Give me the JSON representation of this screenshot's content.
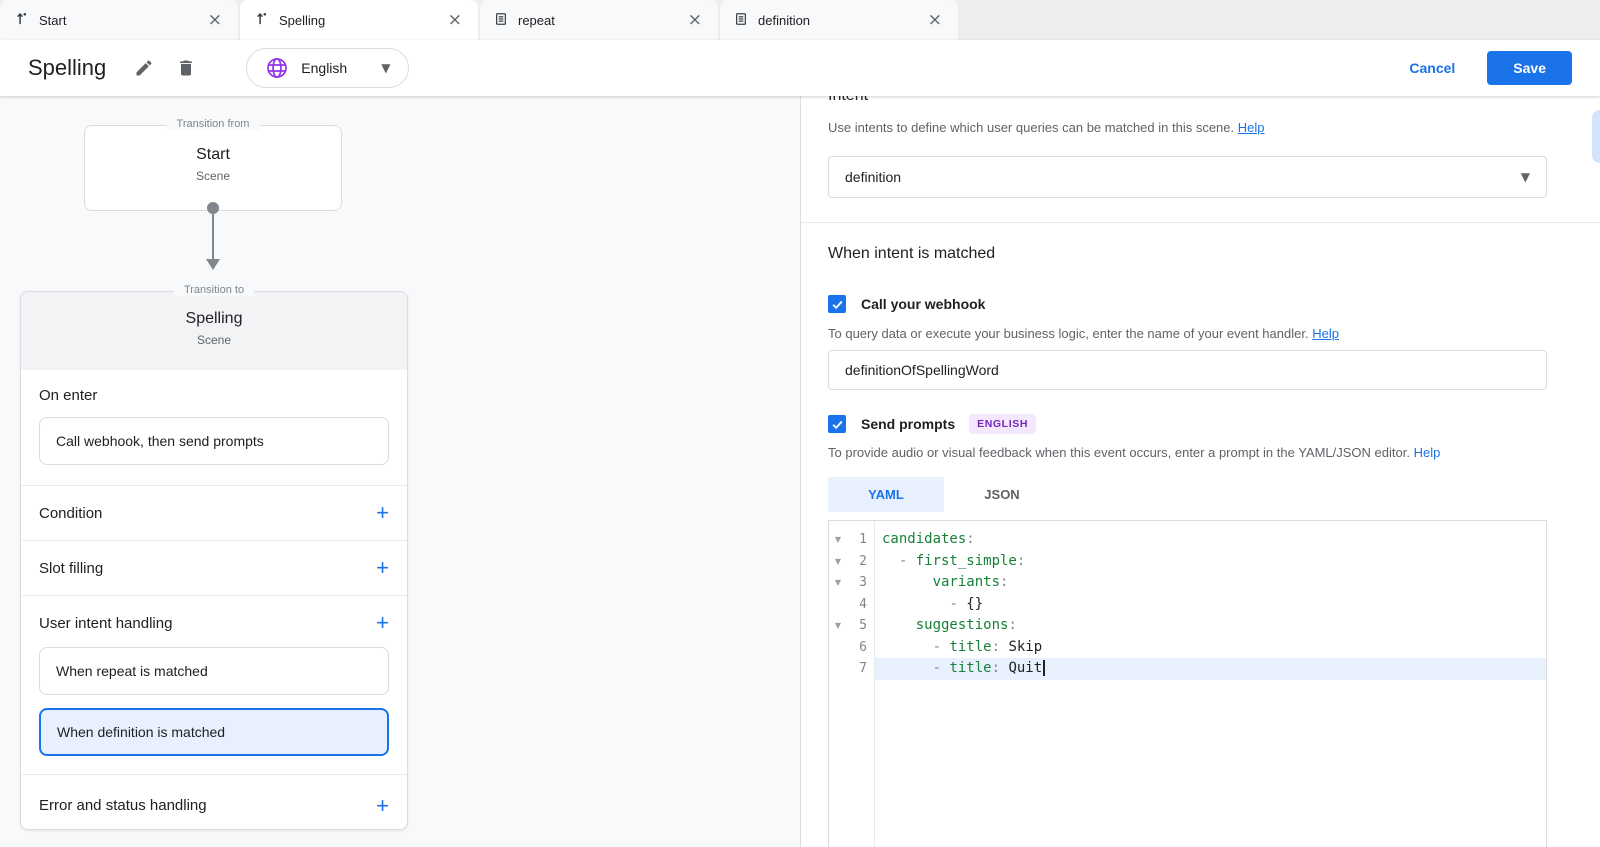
{
  "colors": {
    "accent_blue": "#1a73e8",
    "selected_bg": "#e8f0fe",
    "yaml_key_green": "#188038",
    "code_value_black": "#202124",
    "badge_purple_text": "#7627bb",
    "badge_purple_bg": "#f3e8fd",
    "globe_purple": "#9334e6",
    "border_gray": "#dadce0",
    "canvas_gray": "#f8f9fa",
    "card_head_gray": "#f1f3f4"
  },
  "tabs": [
    {
      "label": "Start",
      "icon": "scene-icon",
      "active": false
    },
    {
      "label": "Spelling",
      "icon": "scene-icon",
      "active": true
    },
    {
      "label": "repeat",
      "icon": "intent-icon",
      "active": false
    },
    {
      "label": "definition",
      "icon": "intent-icon",
      "active": false
    }
  ],
  "header": {
    "title": "Spelling",
    "language": "English",
    "cancel_label": "Cancel",
    "save_label": "Save"
  },
  "diagram": {
    "from": {
      "frame_label": "Transition from",
      "name": "Start",
      "type": "Scene"
    },
    "to": {
      "frame_label": "Transition to",
      "name": "Spelling",
      "type": "Scene"
    },
    "on_enter": {
      "label": "On enter",
      "handler": "Call webhook, then send prompts"
    },
    "rows": [
      {
        "label": "Condition"
      },
      {
        "label": "Slot filling"
      }
    ],
    "user_intent": {
      "label": "User intent handling",
      "handlers": [
        {
          "label": "When repeat is matched",
          "selected": false
        },
        {
          "label": "When definition is matched",
          "selected": true
        }
      ]
    },
    "error_row": {
      "label": "Error and status handling"
    }
  },
  "panel": {
    "intent": {
      "heading": "Intent",
      "description": "Use intents to define which user queries can be matched in this scene.",
      "help_label": "Help",
      "selected_value": "definition"
    },
    "matched_heading": "When intent is matched",
    "webhook": {
      "label": "Call your webhook",
      "checked": true,
      "description": "To query data or execute your business logic, enter the name of your event handler.",
      "help_label": "Help",
      "handler_value": "definitionOfSpellingWord"
    },
    "prompts": {
      "label": "Send prompts",
      "checked": true,
      "badge": "ENGLISH",
      "description": "To provide audio or visual feedback when this event occurs, enter a prompt in the YAML/JSON editor.",
      "help_label": "Help"
    },
    "editor": {
      "tabs": [
        {
          "label": "YAML",
          "active": true
        },
        {
          "label": "JSON",
          "active": false
        }
      ],
      "active_line": 7,
      "lines": [
        {
          "num": 1,
          "fold": true,
          "cursor": false,
          "segments": [
            [
              "key",
              "candidates"
            ],
            [
              "punc",
              ":"
            ]
          ]
        },
        {
          "num": 2,
          "fold": true,
          "cursor": false,
          "segments": [
            [
              "punc",
              "  - "
            ],
            [
              "key",
              "first_simple"
            ],
            [
              "punc",
              ":"
            ]
          ]
        },
        {
          "num": 3,
          "fold": true,
          "cursor": false,
          "segments": [
            [
              "punc",
              "      "
            ],
            [
              "key",
              "variants"
            ],
            [
              "punc",
              ":"
            ]
          ]
        },
        {
          "num": 4,
          "fold": false,
          "cursor": false,
          "segments": [
            [
              "punc",
              "        - "
            ],
            [
              "val",
              "{}"
            ]
          ]
        },
        {
          "num": 5,
          "fold": true,
          "cursor": false,
          "segments": [
            [
              "punc",
              "    "
            ],
            [
              "key",
              "suggestions"
            ],
            [
              "punc",
              ":"
            ]
          ]
        },
        {
          "num": 6,
          "fold": false,
          "cursor": false,
          "segments": [
            [
              "punc",
              "      - "
            ],
            [
              "key",
              "title"
            ],
            [
              "punc",
              ": "
            ],
            [
              "val",
              "Skip"
            ]
          ]
        },
        {
          "num": 7,
          "fold": false,
          "cursor": true,
          "segments": [
            [
              "punc",
              "      - "
            ],
            [
              "key",
              "title"
            ],
            [
              "punc",
              ": "
            ],
            [
              "val",
              "Quit"
            ]
          ]
        }
      ]
    }
  }
}
